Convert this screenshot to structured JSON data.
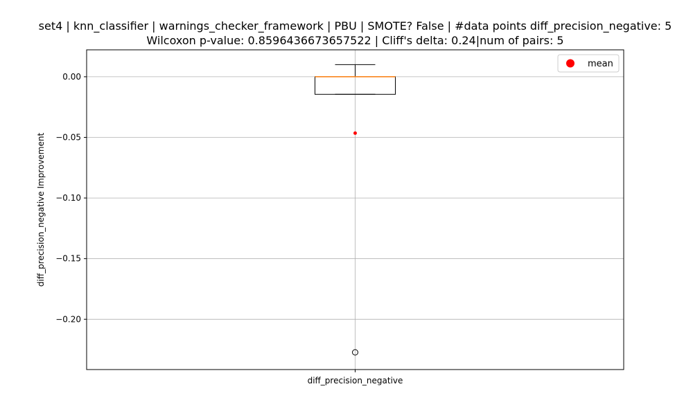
{
  "chart_data": {
    "type": "box",
    "title_line1": "set4 | knn_classifier | warnings_checker_framework | PBU | SMOTE? False | #data points diff_precision_negative: 5",
    "title_line2": "Wilcoxon p-value: 0.8596436673657522 | Cliff's delta: 0.24|num of pairs: 5",
    "xlabel": "",
    "ylabel": "diff_precision_negative Improvement",
    "categories": [
      "diff_precision_negative"
    ],
    "ylim": [
      -0.2415,
      0.0222
    ],
    "yticks": [
      0.0,
      -0.05,
      -0.1,
      -0.15,
      -0.2
    ],
    "ytick_labels": [
      "0.00",
      "−0.05",
      "−0.10",
      "−0.15",
      "−0.20"
    ],
    "grid": true,
    "box": {
      "whisker_low": -0.0145,
      "q1": -0.0145,
      "median": 0.0,
      "q3": 0.0,
      "whisker_high": 0.01,
      "outliers": [
        -0.2273
      ],
      "mean": -0.0465
    },
    "legend": {
      "placement": "top-right",
      "entries": [
        {
          "label": "mean",
          "color": "#ff0000"
        }
      ]
    },
    "colors": {
      "median": "#ff7f0e",
      "mean": "#ff0000",
      "box": "#000000",
      "grid": "#b0b0b0"
    }
  }
}
